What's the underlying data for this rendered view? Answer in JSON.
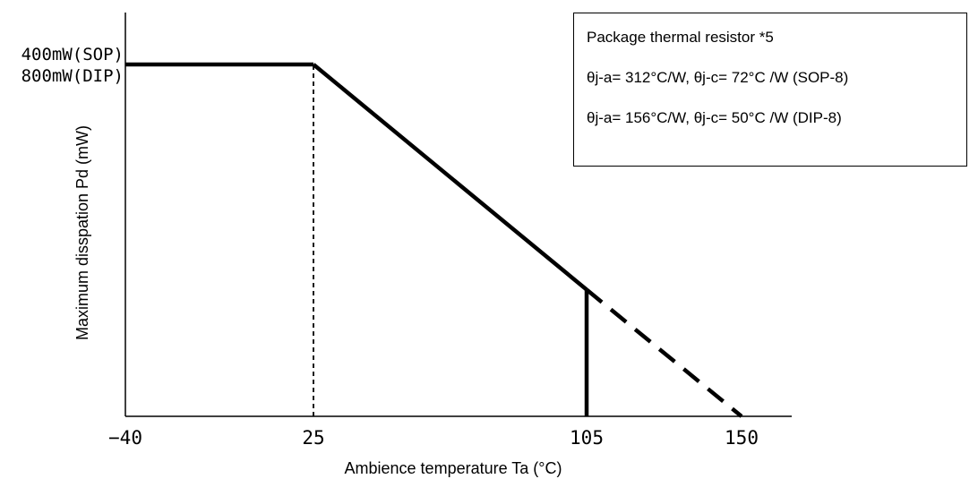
{
  "chart_data": {
    "type": "line",
    "title": "",
    "xlabel": "Ambience temperature Ta (°C)",
    "ylabel": "Maximum disspation Pd (mW)",
    "xlim": [
      -40,
      155
    ],
    "ylim": [
      0,
      100
    ],
    "x_ticks": [
      {
        "value": -40,
        "label": "−40"
      },
      {
        "value": 25,
        "label": "25"
      },
      {
        "value": 105,
        "label": "105"
      },
      {
        "value": 150,
        "label": "150"
      }
    ],
    "y_ticks": [
      {
        "value": 100,
        "labels": [
          "400mW(SOP)",
          "800mW(DIP)"
        ]
      }
    ],
    "series": [
      {
        "style": "solid-thick",
        "x": [
          -40,
          25
        ],
        "y": [
          100,
          100
        ]
      },
      {
        "style": "solid-thick",
        "x": [
          25,
          105
        ],
        "y": [
          100,
          36
        ]
      },
      {
        "style": "dashed-thick",
        "x": [
          105,
          150
        ],
        "y": [
          36,
          0
        ]
      }
    ],
    "reference_lines": [
      {
        "style": "dashed-thin",
        "x": [
          25,
          25
        ],
        "y": [
          0,
          100
        ]
      },
      {
        "style": "solid-thick",
        "x": [
          105,
          105
        ],
        "y": [
          0,
          36
        ]
      }
    ],
    "annotation": {
      "title": "Package thermal resistor *5",
      "lines": [
        "θj-a= 312°C/W, θj-c= 72°C /W (SOP-8)",
        "θj-a= 156°C/W, θj-c= 50°C /W (DIP-8)"
      ]
    },
    "legend_position": "top-right",
    "grid": false
  },
  "colors": {
    "line": "#000000",
    "background": "#ffffff"
  }
}
